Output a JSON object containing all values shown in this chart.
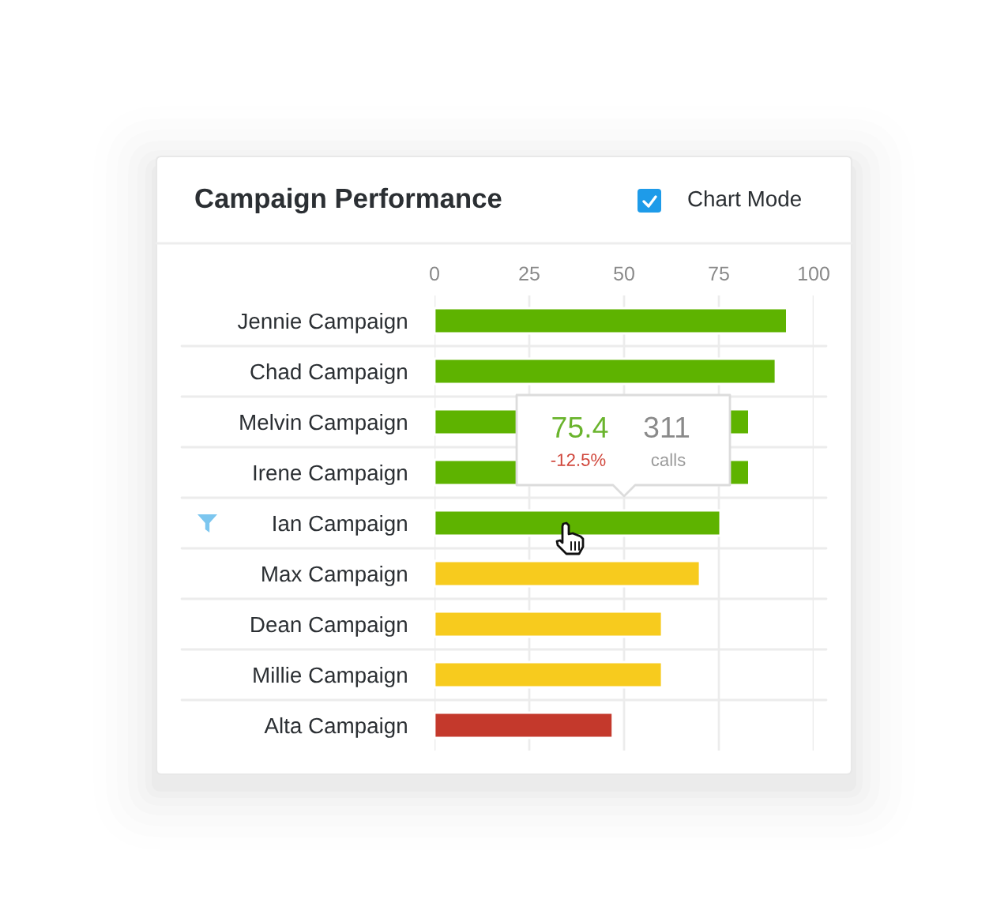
{
  "chart_data": {
    "type": "bar",
    "orientation": "horizontal",
    "title": "Campaign Performance",
    "categories": [
      "Jennie Campaign",
      "Chad Campaign",
      "Melvin Campaign",
      "Irene Campaign",
      "Ian Campaign",
      "Max Campaign",
      "Dean Campaign",
      "Millie Campaign",
      "Alta Campaign"
    ],
    "values": [
      93,
      90,
      83,
      83,
      75.4,
      70,
      60,
      60,
      47
    ],
    "colors": [
      "#5eb300",
      "#5eb300",
      "#5eb300",
      "#5eb300",
      "#5eb300",
      "#f7cb1e",
      "#f7cb1e",
      "#f7cb1e",
      "#c4392c"
    ],
    "xlim": [
      0,
      100
    ],
    "xticks": [
      0,
      25,
      50,
      75,
      100
    ],
    "grid": true,
    "annotations": [
      "Chart Mode",
      "75.4",
      "-12.5%",
      "311",
      "calls"
    ]
  }
}
